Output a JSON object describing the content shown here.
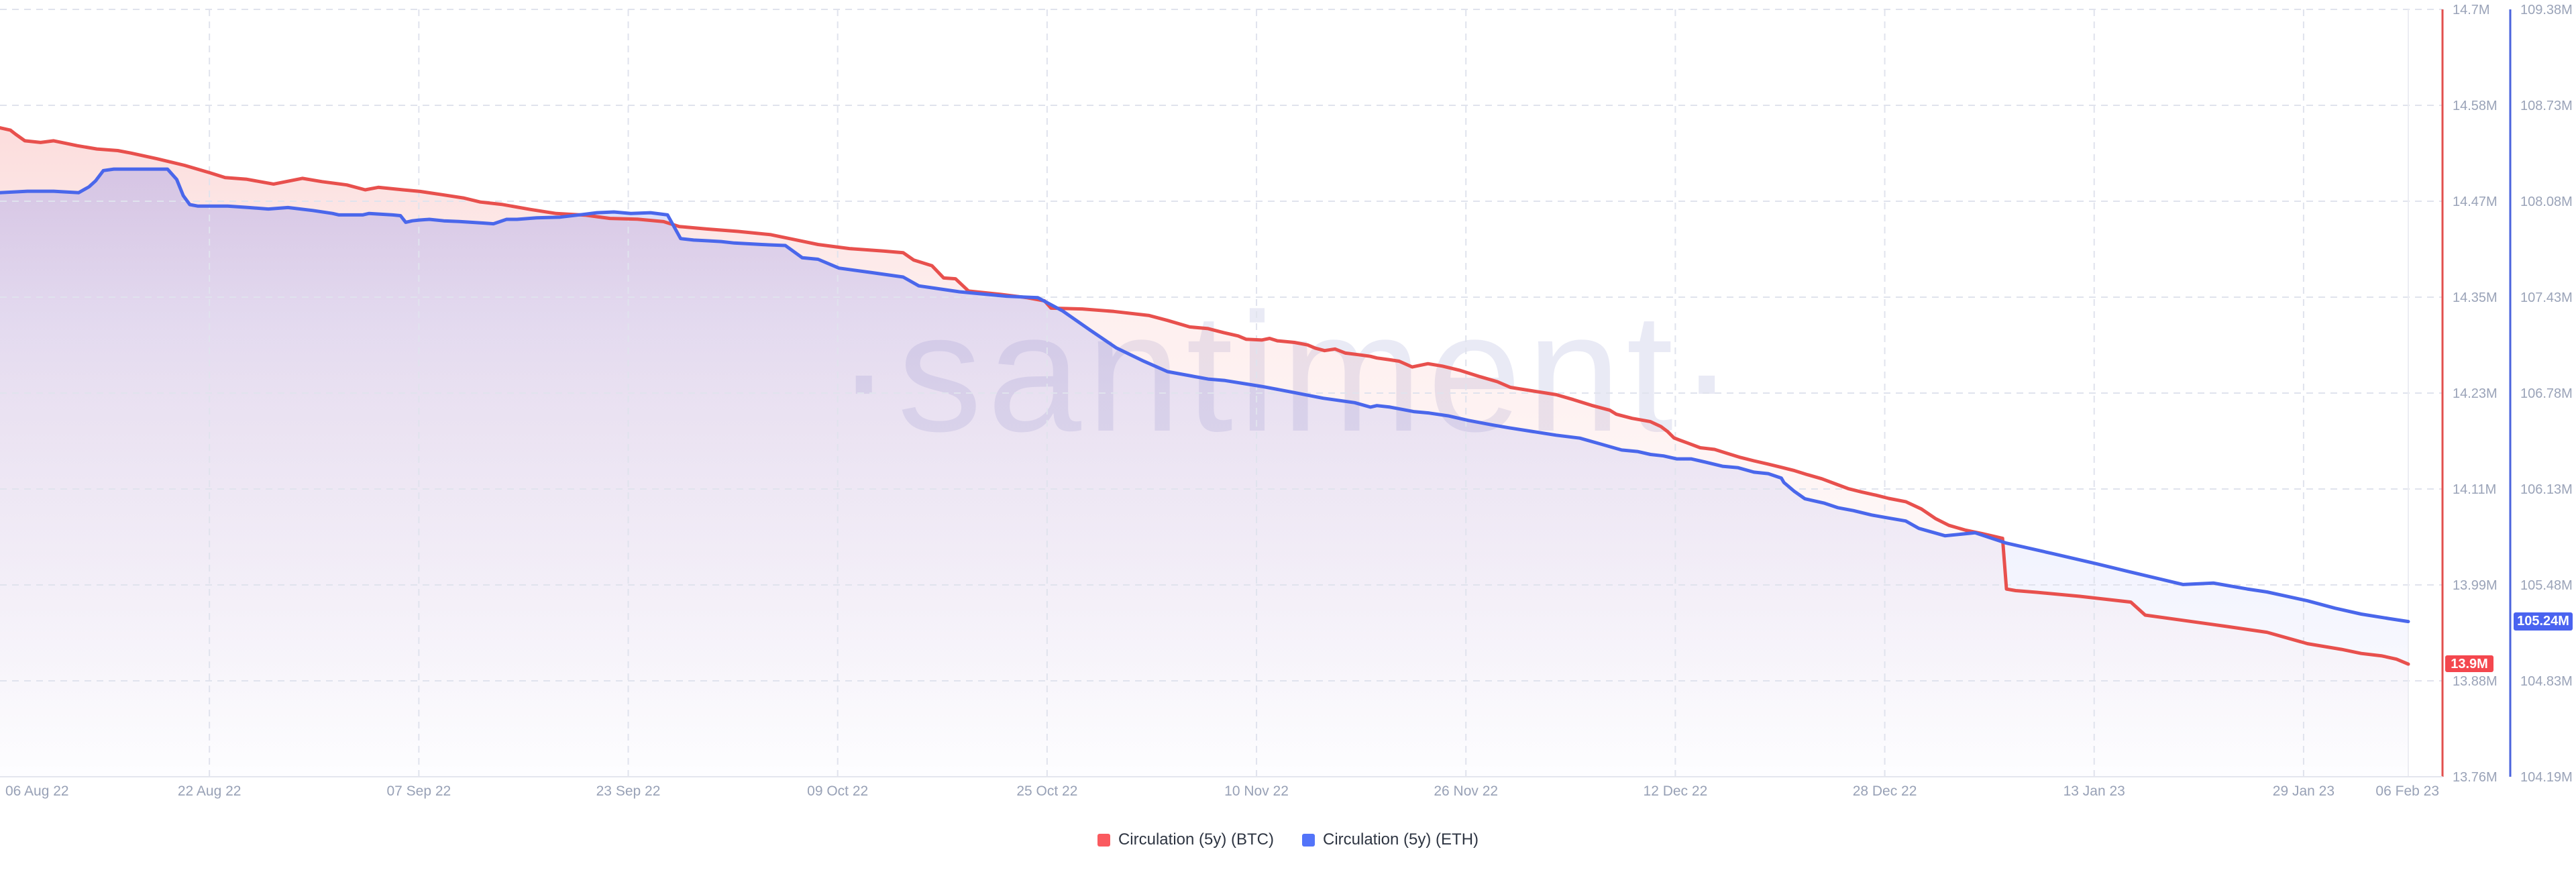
{
  "watermark": "·santiment·",
  "legend": {
    "items": [
      {
        "label": "Circulation (5y) (BTC)",
        "color": "#fa5a5f"
      },
      {
        "label": "Circulation (5y) (ETH)",
        "color": "#5374f9"
      }
    ]
  },
  "chart_data": {
    "type": "area",
    "title": "",
    "grid": {
      "color": "#e0e3ed",
      "dash": [
        10,
        8
      ],
      "latest_marker_color": "#ecedf3"
    },
    "watermark_color": "#e9eaf5",
    "x_axis": {
      "tick_labels": [
        "06 Aug 22",
        "22 Aug 22",
        "07 Sep 22",
        "23 Sep 22",
        "09 Oct 22",
        "25 Oct 22",
        "10 Nov 22",
        "26 Nov 22",
        "12 Dec 22",
        "28 Dec 22",
        "13 Jan 23",
        "29 Jan 23",
        "06 Feb 23"
      ],
      "tick_days": [
        0,
        16,
        32,
        48,
        64,
        80,
        96,
        112,
        128,
        144,
        160,
        176,
        184
      ],
      "total_days": 184,
      "label_color": "#98a1b6",
      "axis_line_color": "#e4e6ee"
    },
    "y_axes": {
      "btc": {
        "labels": [
          "14.7M",
          "14.58M",
          "14.47M",
          "14.35M",
          "14.23M",
          "14.11M",
          "13.99M",
          "13.88M",
          "13.76M"
        ],
        "max": 14.7,
        "min": 13.76,
        "axis_line_color": "#e2504e",
        "label_color": "#9aa3b8",
        "current_badge": {
          "text": "13.9M",
          "value": 13.898,
          "bg": "#f4474e"
        }
      },
      "eth": {
        "labels": [
          "109.38M",
          "108.73M",
          "108.08M",
          "107.43M",
          "106.78M",
          "106.13M",
          "105.48M",
          "104.83M",
          "104.19M"
        ],
        "max": 109.38,
        "min": 104.19,
        "axis_line_color": "#4a63dd",
        "label_color": "#9aa3b8",
        "current_badge": {
          "text": "105.24M",
          "value": 105.24,
          "bg": "#4a63f0"
        }
      }
    },
    "series": [
      {
        "name": "Circulation (5y) (BTC)",
        "axis": "btc",
        "color": "#e8504d",
        "fill_rgb": "239,80,77",
        "points": [
          [
            0,
            14.555
          ],
          [
            0.8,
            14.552
          ],
          [
            1.2,
            14.547
          ],
          [
            1.9,
            14.539
          ],
          [
            3.1,
            14.537
          ],
          [
            4.1,
            14.539
          ],
          [
            5.9,
            14.533
          ],
          [
            7.4,
            14.529
          ],
          [
            9,
            14.527
          ],
          [
            10,
            14.524
          ],
          [
            12,
            14.517
          ],
          [
            14.1,
            14.509
          ],
          [
            16,
            14.5
          ],
          [
            17.2,
            14.494
          ],
          [
            18.8,
            14.492
          ],
          [
            20.9,
            14.486
          ],
          [
            23.1,
            14.493
          ],
          [
            24.6,
            14.489
          ],
          [
            26.5,
            14.485
          ],
          [
            27.9,
            14.479
          ],
          [
            28.9,
            14.482
          ],
          [
            30.8,
            14.479
          ],
          [
            32.1,
            14.477
          ],
          [
            33.8,
            14.473
          ],
          [
            35.4,
            14.469
          ],
          [
            36.7,
            14.464
          ],
          [
            38.4,
            14.461
          ],
          [
            40.5,
            14.455
          ],
          [
            42.5,
            14.45
          ],
          [
            44.7,
            14.448
          ],
          [
            46.6,
            14.444
          ],
          [
            48.7,
            14.443
          ],
          [
            50.7,
            14.44
          ],
          [
            51.9,
            14.434
          ],
          [
            54,
            14.431
          ],
          [
            56.4,
            14.428
          ],
          [
            58.9,
            14.424
          ],
          [
            60.7,
            14.418
          ],
          [
            62.5,
            14.412
          ],
          [
            64.9,
            14.407
          ],
          [
            67.5,
            14.404
          ],
          [
            69,
            14.402
          ],
          [
            69.8,
            14.393
          ],
          [
            71.2,
            14.386
          ],
          [
            72.1,
            14.371
          ],
          [
            73,
            14.37
          ],
          [
            74,
            14.355
          ],
          [
            76.4,
            14.351
          ],
          [
            78.4,
            14.347
          ],
          [
            79.8,
            14.343
          ],
          [
            80.3,
            14.334
          ],
          [
            82.7,
            14.333
          ],
          [
            85.1,
            14.33
          ],
          [
            87.8,
            14.325
          ],
          [
            89.2,
            14.319
          ],
          [
            90.9,
            14.311
          ],
          [
            92.3,
            14.309
          ],
          [
            93.5,
            14.304
          ],
          [
            94.6,
            14.3
          ],
          [
            95.2,
            14.296
          ],
          [
            96.4,
            14.295
          ],
          [
            97,
            14.297
          ],
          [
            97.6,
            14.294
          ],
          [
            98.9,
            14.292
          ],
          [
            99.9,
            14.289
          ],
          [
            100.5,
            14.285
          ],
          [
            101.2,
            14.282
          ],
          [
            102,
            14.284
          ],
          [
            102.8,
            14.279
          ],
          [
            103.8,
            14.277
          ],
          [
            104.7,
            14.275
          ],
          [
            105.2,
            14.273
          ],
          [
            106.1,
            14.271
          ],
          [
            106.9,
            14.269
          ],
          [
            107.9,
            14.262
          ],
          [
            109.1,
            14.266
          ],
          [
            110.2,
            14.263
          ],
          [
            111.5,
            14.258
          ],
          [
            113.1,
            14.25
          ],
          [
            114.4,
            14.244
          ],
          [
            115.4,
            14.237
          ],
          [
            118.9,
            14.228
          ],
          [
            120.2,
            14.222
          ],
          [
            121.6,
            14.215
          ],
          [
            123,
            14.209
          ],
          [
            123.5,
            14.204
          ],
          [
            124.7,
            14.199
          ],
          [
            126.1,
            14.195
          ],
          [
            126.9,
            14.189
          ],
          [
            127.4,
            14.183
          ],
          [
            127.9,
            14.175
          ],
          [
            128.4,
            14.172
          ],
          [
            128.9,
            14.169
          ],
          [
            129.9,
            14.163
          ],
          [
            131,
            14.161
          ],
          [
            132,
            14.156
          ],
          [
            133,
            14.151
          ],
          [
            134,
            14.147
          ],
          [
            135.1,
            14.143
          ],
          [
            136.1,
            14.139
          ],
          [
            137.1,
            14.135
          ],
          [
            138.1,
            14.13
          ],
          [
            139.2,
            14.125
          ],
          [
            140.2,
            14.119
          ],
          [
            141.2,
            14.113
          ],
          [
            142.2,
            14.109
          ],
          [
            143.3,
            14.105
          ],
          [
            144.3,
            14.101
          ],
          [
            145.6,
            14.097
          ],
          [
            146.8,
            14.088
          ],
          [
            147.9,
            14.076
          ],
          [
            148.9,
            14.068
          ],
          [
            150.2,
            14.062
          ],
          [
            151.4,
            14.058
          ],
          [
            153,
            14.052
          ],
          [
            153.3,
            13.99
          ],
          [
            154,
            13.988
          ],
          [
            155.6,
            13.986
          ],
          [
            158.9,
            13.981
          ],
          [
            162.8,
            13.974
          ],
          [
            163.9,
            13.958
          ],
          [
            166.6,
            13.952
          ],
          [
            170.2,
            13.944
          ],
          [
            173.2,
            13.937
          ],
          [
            176.3,
            13.923
          ],
          [
            178.9,
            13.916
          ],
          [
            180.4,
            13.911
          ],
          [
            182,
            13.908
          ],
          [
            183.1,
            13.904
          ],
          [
            184,
            13.898
          ]
        ]
      },
      {
        "name": "Circulation (5y) (ETH)",
        "axis": "eth",
        "color": "#4a67eb",
        "fill_rgb": "93,108,238",
        "points": [
          [
            0,
            108.14
          ],
          [
            2.1,
            108.15
          ],
          [
            4.1,
            108.15
          ],
          [
            6,
            108.14
          ],
          [
            6.8,
            108.18
          ],
          [
            7.3,
            108.22
          ],
          [
            7.9,
            108.29
          ],
          [
            8.7,
            108.3
          ],
          [
            12.8,
            108.3
          ],
          [
            13.5,
            108.23
          ],
          [
            14,
            108.12
          ],
          [
            14.5,
            108.06
          ],
          [
            15.1,
            108.05
          ],
          [
            17.4,
            108.05
          ],
          [
            19,
            108.04
          ],
          [
            20.5,
            108.03
          ],
          [
            22,
            108.04
          ],
          [
            23.9,
            108.02
          ],
          [
            25.4,
            108
          ],
          [
            25.9,
            107.99
          ],
          [
            27.7,
            107.99
          ],
          [
            28.2,
            108
          ],
          [
            30,
            107.99
          ],
          [
            30.6,
            107.985
          ],
          [
            31,
            107.94
          ],
          [
            31.5,
            107.95
          ],
          [
            32,
            107.955
          ],
          [
            32.8,
            107.96
          ],
          [
            33.9,
            107.95
          ],
          [
            35.1,
            107.945
          ],
          [
            36.9,
            107.935
          ],
          [
            37.7,
            107.93
          ],
          [
            38.7,
            107.96
          ],
          [
            39.5,
            107.96
          ],
          [
            41,
            107.97
          ],
          [
            42.8,
            107.975
          ],
          [
            44.7,
            107.995
          ],
          [
            45.6,
            108.005
          ],
          [
            46.9,
            108.01
          ],
          [
            48.2,
            108
          ],
          [
            49.7,
            108.005
          ],
          [
            51,
            107.99
          ],
          [
            52,
            107.83
          ],
          [
            53,
            107.82
          ],
          [
            54.1,
            107.815
          ],
          [
            55.1,
            107.81
          ],
          [
            56.1,
            107.8
          ],
          [
            58.2,
            107.79
          ],
          [
            60,
            107.783
          ],
          [
            61.3,
            107.7
          ],
          [
            62.5,
            107.69
          ],
          [
            64.1,
            107.63
          ],
          [
            66.6,
            107.6
          ],
          [
            69,
            107.57
          ],
          [
            70.2,
            107.51
          ],
          [
            73.3,
            107.47
          ],
          [
            76.9,
            107.44
          ],
          [
            79.3,
            107.43
          ],
          [
            81.2,
            107.34
          ],
          [
            83.3,
            107.21
          ],
          [
            85.3,
            107.09
          ],
          [
            87.4,
            107
          ],
          [
            89.2,
            106.93
          ],
          [
            92.3,
            106.88
          ],
          [
            93.6,
            106.87
          ],
          [
            96.4,
            106.83
          ],
          [
            98.8,
            106.79
          ],
          [
            101.1,
            106.75
          ],
          [
            103.5,
            106.72
          ],
          [
            104.7,
            106.69
          ],
          [
            105.2,
            106.7
          ],
          [
            106.2,
            106.69
          ],
          [
            108,
            106.66
          ],
          [
            109.2,
            106.65
          ],
          [
            110.7,
            106.63
          ],
          [
            112.2,
            106.6
          ],
          [
            114,
            106.57
          ],
          [
            115.3,
            106.55
          ],
          [
            118.9,
            106.5
          ],
          [
            120.7,
            106.48
          ],
          [
            122.3,
            106.44
          ],
          [
            123.9,
            106.4
          ],
          [
            125.1,
            106.39
          ],
          [
            126.1,
            106.37
          ],
          [
            127.1,
            106.36
          ],
          [
            128.1,
            106.34
          ],
          [
            129.2,
            106.34
          ],
          [
            130.2,
            106.32
          ],
          [
            131.6,
            106.29
          ],
          [
            132.8,
            106.28
          ],
          [
            134,
            106.25
          ],
          [
            135.1,
            106.24
          ],
          [
            136.1,
            106.21
          ],
          [
            136.3,
            106.18
          ],
          [
            137.1,
            106.12
          ],
          [
            137.9,
            106.07
          ],
          [
            138.4,
            106.06
          ],
          [
            139.4,
            106.04
          ],
          [
            140.4,
            106.01
          ],
          [
            141.6,
            105.99
          ],
          [
            143,
            105.96
          ],
          [
            144.3,
            105.94
          ],
          [
            145.6,
            105.92
          ],
          [
            146.6,
            105.87
          ],
          [
            148.6,
            105.82
          ],
          [
            150.9,
            105.84
          ],
          [
            153.3,
            105.77
          ],
          [
            156.8,
            105.7
          ],
          [
            160.2,
            105.63
          ],
          [
            163,
            105.57
          ],
          [
            166.8,
            105.49
          ],
          [
            169.1,
            105.5
          ],
          [
            171.7,
            105.46
          ],
          [
            173.2,
            105.44
          ],
          [
            176.3,
            105.38
          ],
          [
            178.4,
            105.33
          ],
          [
            180.4,
            105.29
          ],
          [
            182.5,
            105.26
          ],
          [
            184,
            105.24
          ]
        ]
      }
    ]
  }
}
